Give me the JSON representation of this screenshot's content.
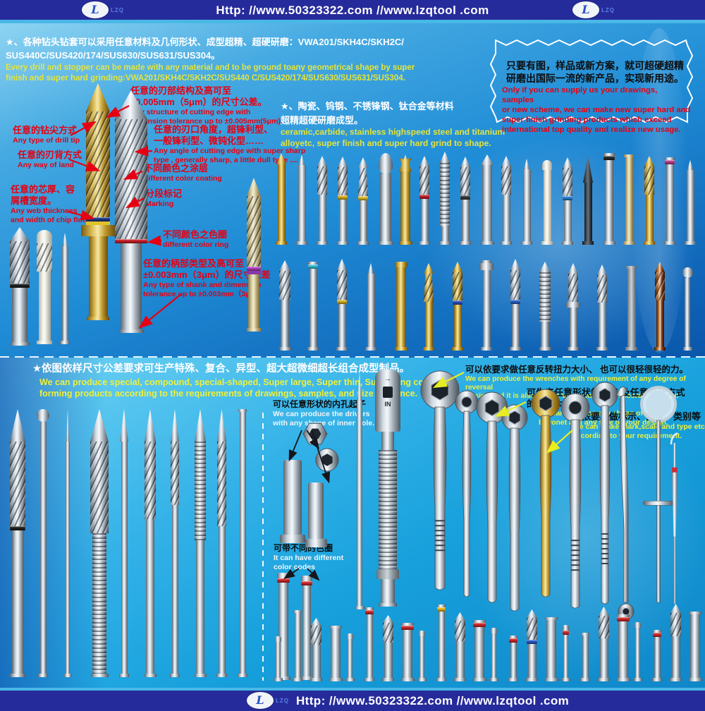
{
  "brand": {
    "logo_text": "LZQ",
    "url_text": "Http: //www.50323322.com   //www.lzqtool .com"
  },
  "top_section": {
    "intro_cn": "★、各种钻头钻套可以采用任意材料及几何形状、成型超精、超硬研磨：VWA201/SKH4C/SKH2C/\nSUS440C/SUS420/174/SUS630/SUS631/SUS304。",
    "intro_en": "Every drill and stopper can be made with any material and to be ground toany geometrical shape by super\nfinish and super hard grinding:VWA201/SKH4C/SKH2C/SUS440 C/SUS420/174/SUS630/SUS631/SUS304.",
    "materials_cn": "★、陶瓷、钨钢、不锈锋钢、钛合金等材料\n超精超硬研磨成型。",
    "materials_en": "ceramic,carbide, stainless highspeed steel and titanium\nalloyetc, super finish and super hard grind to shape.",
    "starburst_cn": "只要有图，样品或新方案，就可超硬超精\n研磨出国际一流的新产品，实现新用途。",
    "starburst_en": "Only if you can supply us your drawings, samples\nor new scheme, we can make new super hard and\nsuper finish grinding products which exceed\ninternational top quality and realize new usage.",
    "annotations": [
      {
        "cn": "任意的刃部结构及高可至\n±0.005mm（5μm）的尺寸公差。",
        "en": "Any structure of cutting edge with\ndimension tolerance up to ±0.005mm(5μm)."
      },
      {
        "cn": "任意的钻尖方式",
        "en": "Any type of drill tip"
      },
      {
        "cn": "任意的刃口角度，超锋利型、\n一般锋利型、微钝化型……",
        "en": "Any angle of cutting edge with super sharp\ntype , generally sharp, a little dull type ...."
      },
      {
        "cn": "任意的刃背方式",
        "en": "Any way of land"
      },
      {
        "cn": "不同颜色之涂层",
        "en": "different color coating"
      },
      {
        "cn": "任意的芯厚、容\n屑槽宽度。",
        "en": "Any web thickness\nand width of chip flute."
      },
      {
        "cn": "分段标记",
        "en": "Marking"
      },
      {
        "cn": "不同颜色之色圈",
        "en": "different color ring"
      },
      {
        "cn": "任意的柄部类型及高可至\n±0.003mm（3μm）的尺寸公差",
        "en": "Any type of shank and dimension\ntolerance up to ±0.003mm（3μm）"
      }
    ]
  },
  "middle_section": {
    "header_cn": "★依图依样尺寸公差要求可生产特殊、复合、异型、超大超微细超长组合成型制品。",
    "header_en": "We can produce special, compound, special-shaped, Super large, Super thin, Super long combined\nforming products according to the requirements of drawings, samples, and size tolerance.",
    "annotations": [
      {
        "cn": "可以依要求做任意反转扭力大小、 也可以很轻很轻的力。",
        "en": "We can produce the wrenches with requirement of any degree of reversal\ntorsion and it is also can be very small force according to your requirement."
      },
      {
        "cn": "可生产任意形状的卡口,及任意设计方式\n的规格大小",
        "en": "We can produce any shape of\nbayonet and any size of your design."
      },
      {
        "cn": "可依要求做标示、刻度、类别等",
        "en": "We can make mark,scale and type etc\naccording to your requirement."
      },
      {
        "cn": "可以任意形状的内孔起子",
        "en": "We can produce the drivers\nwith any shape of inner hole."
      },
      {
        "cn": "可带不同的色圈",
        "en": "It can have different\ncolor codes"
      }
    ],
    "torque_wrench_label": "IN"
  },
  "colors": {
    "bar_navy": "#262b9b",
    "accent_cyan": "#49b8e6",
    "annotation_red": "#e60012",
    "highlight_yellow": "#eef03a"
  }
}
